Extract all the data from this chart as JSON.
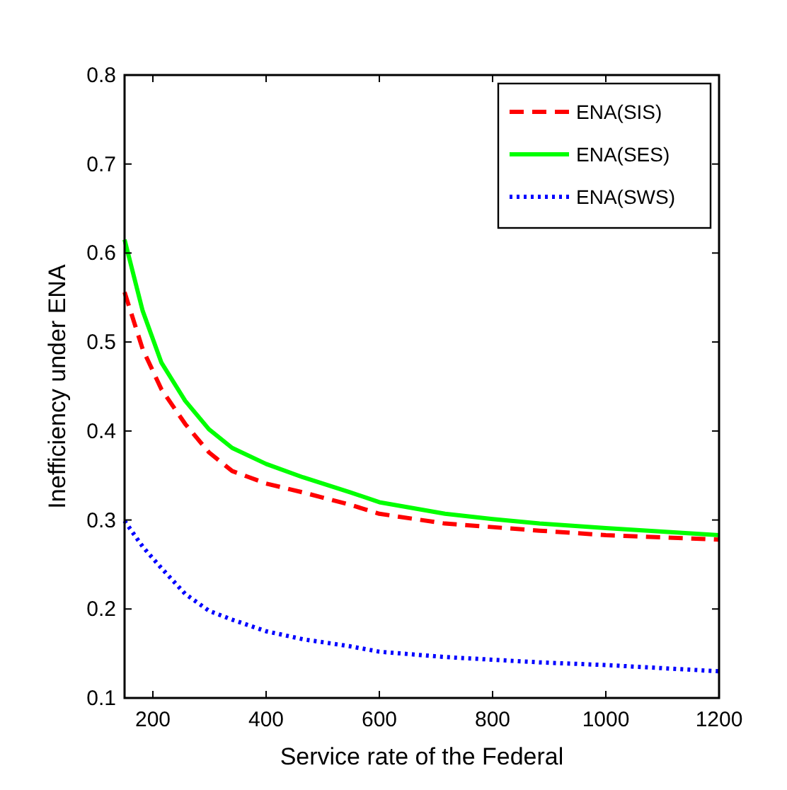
{
  "chart_data": {
    "type": "line",
    "xlabel": "Service rate of the Federal",
    "ylabel": "Inefficiency under ENA",
    "xlim": [
      150,
      1200
    ],
    "ylim": [
      0.1,
      0.8
    ],
    "xticks": [
      200,
      400,
      600,
      800,
      1000,
      1200
    ],
    "yticks": [
      0.1,
      0.2,
      0.3,
      0.4,
      0.5,
      0.6,
      0.7,
      0.8
    ],
    "legend": "top right",
    "grid": false,
    "x": [
      150,
      182,
      215,
      257,
      299,
      340,
      400,
      465,
      549,
      600,
      716,
      800,
      883,
      1000,
      1200
    ],
    "series": [
      {
        "name": "ENA(SIS)",
        "color": "#ff0000",
        "line_style": "dashed",
        "values": [
          0.556,
          0.492,
          0.447,
          0.408,
          0.376,
          0.355,
          0.341,
          0.331,
          0.317,
          0.307,
          0.296,
          0.292,
          0.288,
          0.283,
          0.278
        ]
      },
      {
        "name": "ENA(SES)",
        "color": "#00ff00",
        "line_style": "solid",
        "values": [
          0.615,
          0.535,
          0.477,
          0.434,
          0.402,
          0.381,
          0.363,
          0.348,
          0.331,
          0.32,
          0.307,
          0.301,
          0.296,
          0.291,
          0.283
        ]
      },
      {
        "name": "ENA(SWS)",
        "color": "#0000ff",
        "line_style": "dotted",
        "values": [
          0.299,
          0.27,
          0.246,
          0.217,
          0.198,
          0.188,
          0.175,
          0.166,
          0.158,
          0.152,
          0.146,
          0.143,
          0.14,
          0.137,
          0.13
        ]
      }
    ]
  }
}
